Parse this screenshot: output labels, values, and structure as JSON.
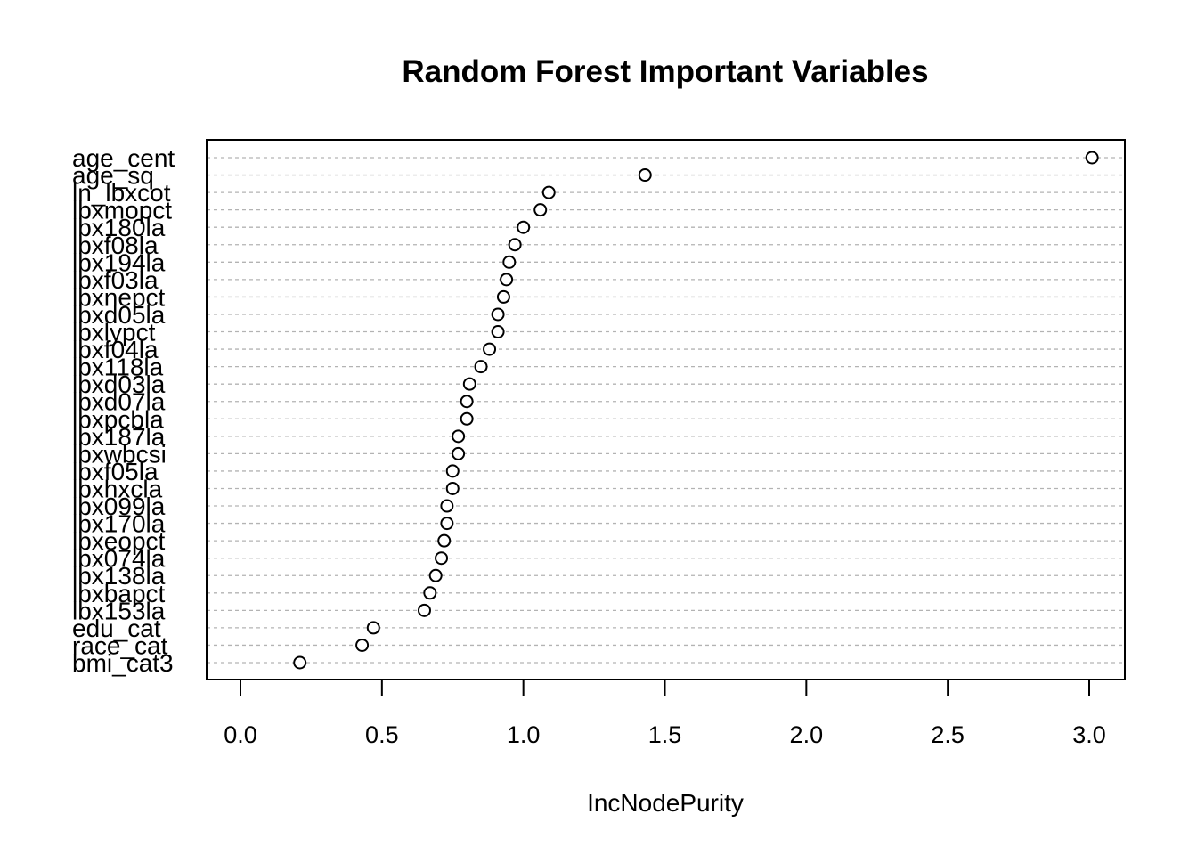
{
  "chart_data": {
    "type": "scatter",
    "title": "Random Forest Important Variables",
    "xlabel": "IncNodePurity",
    "xlim": [
      0.0,
      3.0
    ],
    "x_ticks": [
      "0.0",
      "0.5",
      "1.0",
      "1.5",
      "2.0",
      "2.5",
      "3.0"
    ],
    "x_tick_values": [
      0.0,
      0.5,
      1.0,
      1.5,
      2.0,
      2.5,
      3.0
    ],
    "grid": "dotted horizontal lines",
    "variables": [
      {
        "name": "age_cent",
        "value": 3.01
      },
      {
        "name": "age_sq",
        "value": 1.43
      },
      {
        "name": "ln_lbxcot",
        "value": 1.09
      },
      {
        "name": "lbxmopct",
        "value": 1.06
      },
      {
        "name": "lbx180la",
        "value": 1.0
      },
      {
        "name": "lbxf08la",
        "value": 0.97
      },
      {
        "name": "lbx194la",
        "value": 0.95
      },
      {
        "name": "lbxf03la",
        "value": 0.94
      },
      {
        "name": "lbxnepct",
        "value": 0.93
      },
      {
        "name": "lbxd05la",
        "value": 0.91
      },
      {
        "name": "lbxlypct",
        "value": 0.91
      },
      {
        "name": "lbxf04la",
        "value": 0.88
      },
      {
        "name": "lbx118la",
        "value": 0.85
      },
      {
        "name": "lbxd03la",
        "value": 0.81
      },
      {
        "name": "lbxd07la",
        "value": 0.8
      },
      {
        "name": "lbxpcbla",
        "value": 0.8
      },
      {
        "name": "lbx187la",
        "value": 0.77
      },
      {
        "name": "lbxwbcsi",
        "value": 0.77
      },
      {
        "name": "lbxf05la",
        "value": 0.75
      },
      {
        "name": "lbxhxcla",
        "value": 0.75
      },
      {
        "name": "lbx099la",
        "value": 0.73
      },
      {
        "name": "lbx170la",
        "value": 0.73
      },
      {
        "name": "lbxeopct",
        "value": 0.72
      },
      {
        "name": "lbx074la",
        "value": 0.71
      },
      {
        "name": "lbx138la",
        "value": 0.69
      },
      {
        "name": "lbxbapct",
        "value": 0.67
      },
      {
        "name": "lbx153la",
        "value": 0.65
      },
      {
        "name": "edu_cat",
        "value": 0.47
      },
      {
        "name": "race_cat",
        "value": 0.43
      },
      {
        "name": "bmi_cat3",
        "value": 0.21
      }
    ]
  }
}
